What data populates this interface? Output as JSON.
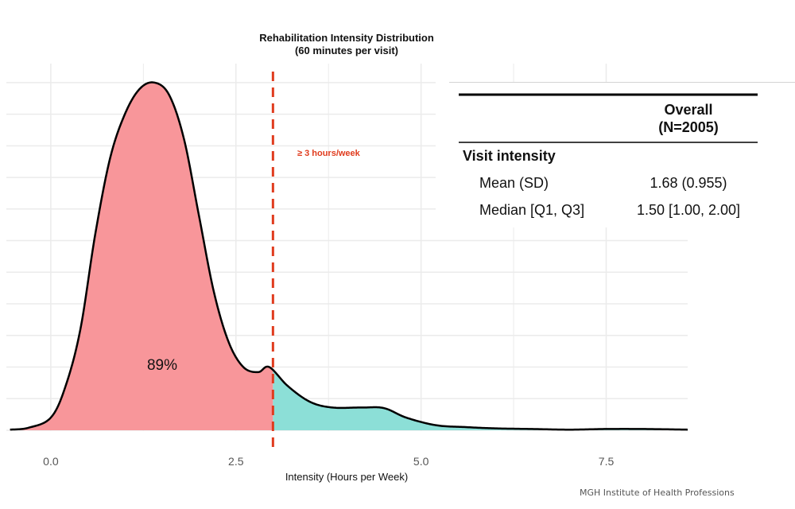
{
  "chart_data": {
    "type": "area",
    "title": "Rehabilitation Intensity Distribution",
    "subtitle": "(60 minutes per visit)",
    "xlabel": "Intensity (Hours per Week)",
    "ylabel": "",
    "xlim": [
      -0.6,
      8.6
    ],
    "ylim": [
      0,
      0.58
    ],
    "xticks": [
      0.0,
      2.5,
      5.0,
      7.5
    ],
    "xtick_labels": [
      "0.0",
      "2.5",
      "5.0",
      "7.5"
    ],
    "grid": true,
    "density": {
      "x": [
        -0.55,
        -0.3,
        0,
        0.2,
        0.4,
        0.6,
        0.8,
        1.0,
        1.2,
        1.4,
        1.6,
        1.8,
        2.0,
        2.2,
        2.4,
        2.6,
        2.8,
        2.95,
        3.2,
        3.5,
        3.8,
        4.2,
        4.5,
        4.8,
        5.2,
        5.6,
        6.0,
        6.5,
        7.0,
        7.5,
        8.0,
        8.6
      ],
      "y": [
        0.001,
        0.004,
        0.02,
        0.07,
        0.16,
        0.31,
        0.43,
        0.5,
        0.54,
        0.55,
        0.53,
        0.46,
        0.34,
        0.22,
        0.14,
        0.1,
        0.092,
        0.1,
        0.07,
        0.045,
        0.036,
        0.036,
        0.035,
        0.02,
        0.008,
        0.005,
        0.003,
        0.002,
        0.001,
        0.002,
        0.002,
        0.001
      ]
    },
    "threshold": {
      "x": 3.0,
      "label": "≥ 3 hours/week"
    },
    "regions": [
      {
        "name": "below",
        "color": "#F8969A",
        "label": "89%"
      },
      {
        "name": "above",
        "color": "#8CDFD7"
      }
    ]
  },
  "colors": {
    "threshold": "#E03C1E",
    "grid": "#EBEBEB",
    "curve": "#000000"
  },
  "summary_table": {
    "column_header": "Overall",
    "column_subheader": "(N=2005)",
    "section": "Visit intensity",
    "rows": [
      {
        "label": "Mean (SD)",
        "value": "1.68 (0.955)"
      },
      {
        "label": "Median [Q1, Q3]",
        "value": "1.50 [1.00, 2.00]"
      }
    ]
  },
  "source": "MGH Institute of Health Professions"
}
